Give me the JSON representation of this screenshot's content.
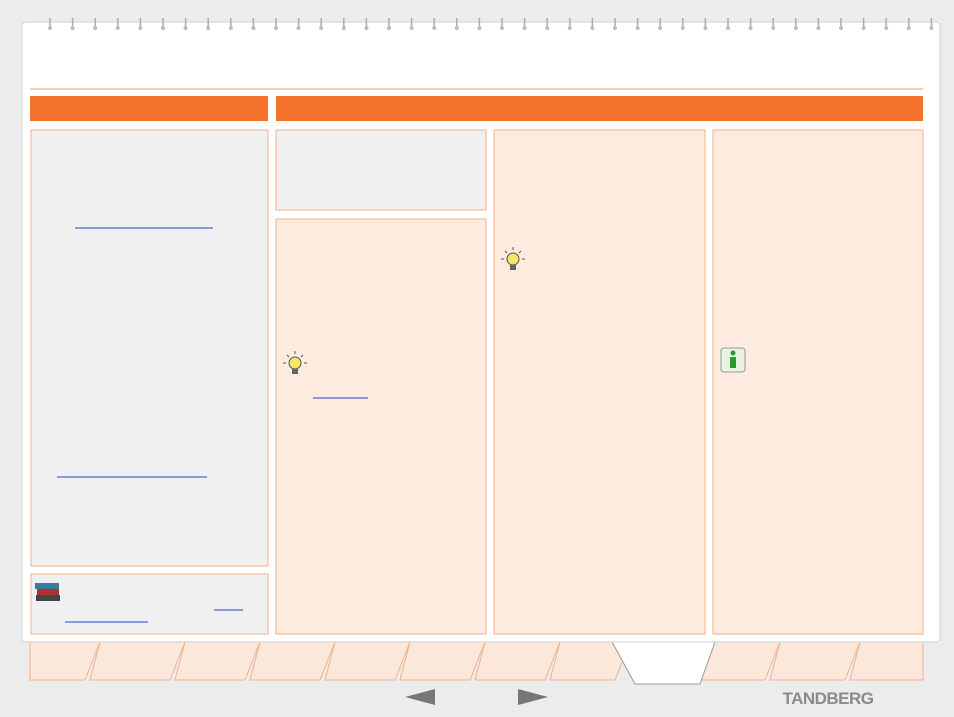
{
  "footer": {
    "logo": "TANDBERG"
  }
}
